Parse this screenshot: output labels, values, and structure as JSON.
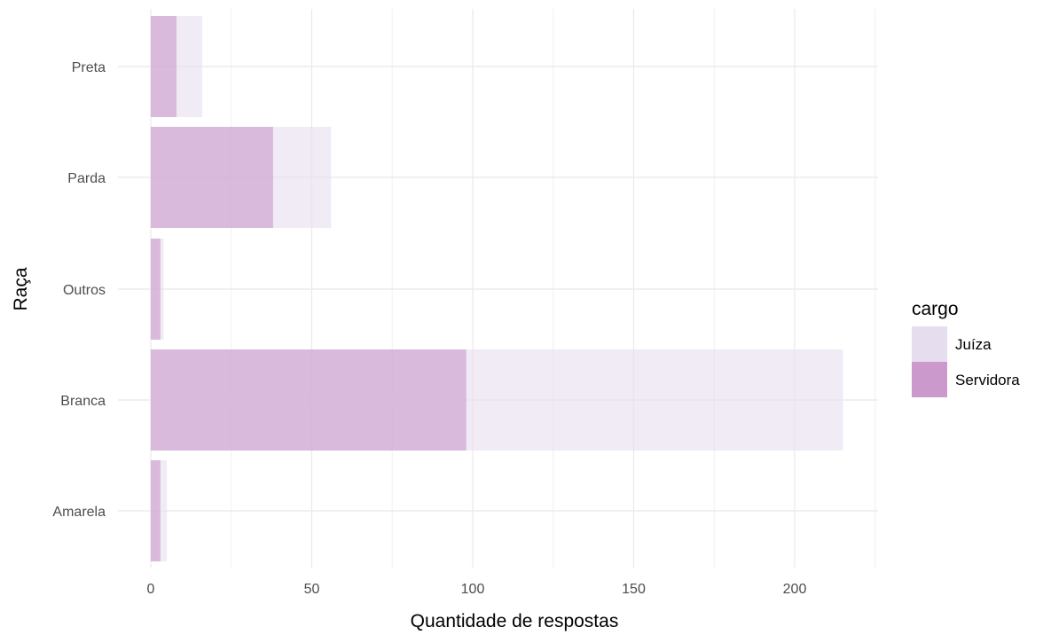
{
  "chart_data": {
    "type": "bar",
    "orientation": "horizontal",
    "stacking": "overlay",
    "categories": [
      "Preta",
      "Parda",
      "Outros",
      "Branca",
      "Amarela"
    ],
    "series": [
      {
        "name": "Juíza",
        "values": [
          16,
          56,
          4,
          215,
          5
        ],
        "color": "#e8e0ef",
        "opacity": 0.65
      },
      {
        "name": "Servidora",
        "values": [
          8,
          38,
          3,
          98,
          3
        ],
        "color": "#cc99cc",
        "opacity": 0.6
      }
    ],
    "xlabel": "Quantidade de respostas",
    "ylabel": "Raça",
    "xlim": [
      0,
      225
    ],
    "xticks": [
      0,
      50,
      100,
      150,
      200
    ],
    "grid": true,
    "legend": {
      "title": "cargo",
      "position": "right",
      "entries": [
        {
          "label": "Juíza",
          "color": "#e6ddef"
        },
        {
          "label": "Servidora",
          "color": "#cc99cc"
        }
      ]
    }
  }
}
